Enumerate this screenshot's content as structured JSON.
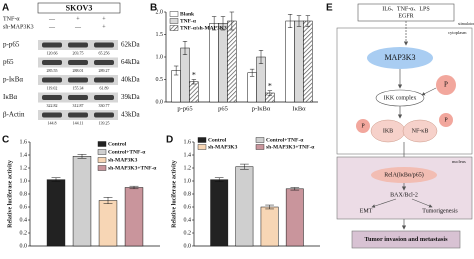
{
  "panel_labels": [
    "A",
    "B",
    "C",
    "D",
    "E"
  ],
  "blot": {
    "title": "SKOV3",
    "conditions": [
      {
        "label": "TNF-α",
        "signs": [
          "—",
          "+",
          "+"
        ]
      },
      {
        "label": "sh-MAP3K3",
        "signs": [
          "—",
          "—",
          "+"
        ]
      }
    ],
    "rows": [
      {
        "name": "p-p65",
        "size": "62kDa",
        "quant": [
          "120.66",
          "203.75",
          "65.256"
        ]
      },
      {
        "name": "p65",
        "size": "64kDa",
        "quant": [
          "285.55",
          "288.01",
          "289.27"
        ]
      },
      {
        "name": "p-IκBα",
        "size": "40kDa",
        "quant": [
          "119.02",
          "155.34",
          "61.89"
        ]
      },
      {
        "name": "IκBα",
        "size": "39kDa",
        "quant": [
          "322.82",
          "312.87",
          "330.77"
        ]
      },
      {
        "name": "β-Actin",
        "size": "43kDa",
        "quant": [
          "144.8",
          "144.11",
          "139.25"
        ]
      }
    ]
  },
  "chart_data": [
    {
      "type": "bar",
      "legend": "upper left",
      "categories": [
        "p-p65",
        "p65",
        "p-IκBα",
        "IκBα"
      ],
      "series": [
        {
          "name": "Blank",
          "color": "#ffffff",
          "values": [
            0.7,
            1.75,
            0.65,
            1.8
          ],
          "errors": [
            0.1,
            0.15,
            0.08,
            0.15
          ]
        },
        {
          "name": "TNF-α",
          "color": "#d9d9d9",
          "values": [
            1.2,
            1.75,
            1.0,
            1.8
          ],
          "errors": [
            0.15,
            0.15,
            0.15,
            0.12
          ]
        },
        {
          "name": "TNF-α/sh-MAP3K3",
          "color": "#888888",
          "pattern": "hatch",
          "values": [
            0.45,
            1.8,
            0.2,
            1.8
          ],
          "errors": [
            0.05,
            0.2,
            0.05,
            0.12
          ]
        }
      ],
      "ylim": [
        0,
        2
      ],
      "yticks": [
        {
          "value": 0,
          "label": "0.0"
        },
        0.5,
        {
          "value": 1,
          "label": "1.0"
        },
        1.5,
        {
          "value": 2,
          "label": "2.0"
        }
      ],
      "annotations": [
        "*",
        "*"
      ]
    },
    {
      "type": "bar",
      "legend": "upper right",
      "ylabel": "Relative luciferase activity",
      "series": [
        {
          "name": "Control",
          "color": "#222222",
          "values": [
            1.02
          ],
          "errors": [
            0.03
          ]
        },
        {
          "name": "Control+TNF-α",
          "color": "#cfcfcf",
          "values": [
            1.38
          ],
          "errors": [
            0.03
          ]
        },
        {
          "name": "sh-MAP3K3",
          "color": "#f7d6b5",
          "values": [
            0.7
          ],
          "errors": [
            0.05
          ]
        },
        {
          "name": "sh-MAP3K3+TNF-α",
          "color": "#c9959c",
          "values": [
            0.9
          ],
          "errors": [
            0.02
          ]
        }
      ],
      "ylim": [
        0,
        1.6
      ],
      "yticks": [
        {
          "value": 0,
          "label": "0.0"
        },
        0.2,
        0.4,
        0.6,
        0.8,
        {
          "value": 1,
          "label": "1.0"
        },
        1.2,
        1.4,
        1.6
      ]
    },
    {
      "type": "bar",
      "legend": "top",
      "ylabel": "Relative luciferase activity",
      "series": [
        {
          "name": "Control",
          "color": "#222222",
          "values": [
            1.02
          ],
          "errors": [
            0.03
          ]
        },
        {
          "name": "Control+TNF-α",
          "color": "#cfcfcf",
          "values": [
            1.22
          ],
          "errors": [
            0.04
          ]
        },
        {
          "name": "sh-MAP3K3",
          "color": "#f7d6b5",
          "values": [
            0.6
          ],
          "errors": [
            0.03
          ]
        },
        {
          "name": "sh-MAP3K3+TNF-α",
          "color": "#c9959c",
          "values": [
            0.88
          ],
          "errors": [
            0.02
          ]
        }
      ],
      "ylim": [
        0,
        1.6
      ],
      "yticks": [
        {
          "value": 0,
          "label": "0.0"
        },
        0.2,
        0.4,
        0.6,
        0.8,
        {
          "value": 1,
          "label": "1.0"
        },
        1.2,
        1.4,
        1.6
      ]
    }
  ],
  "diagram": {
    "stimulus": [
      "IL6、TNF-α、LPS",
      "EGFR"
    ],
    "stimulator": "stimulator",
    "cytoplasm": "cytoplasm",
    "kinase": "MAP3K3",
    "phospho": [
      "P",
      "P",
      "P"
    ],
    "ikk": "IKK complex",
    "ikb": "IKB",
    "nfkb": "NF-κB",
    "nucleus": "nucleus",
    "rela": "RelA(IκBα/p65)",
    "bax": "BAX/Bcl-2",
    "emt": "EMT",
    "tumorigenesis": "Tumorigenesis",
    "outcome": "Tumor invasion and metastasis"
  }
}
